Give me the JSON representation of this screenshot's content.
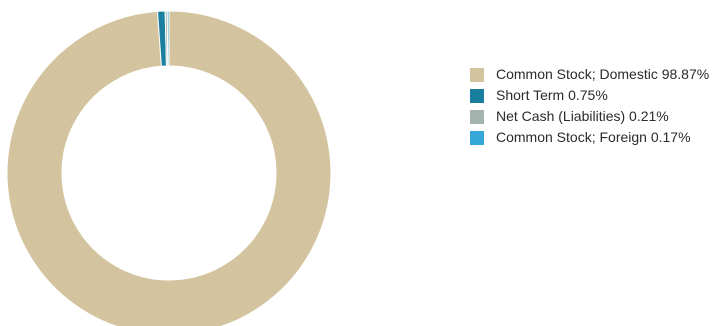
{
  "chart_data": {
    "type": "pie",
    "variant": "donut",
    "legend_position": "right",
    "series": [
      {
        "name": "Common Stock; Domestic",
        "label": "Common Stock; Domestic 98.87%",
        "value": 98.87,
        "color": "#d3c49f"
      },
      {
        "name": "Short Term",
        "label": "Short Term 0.75%",
        "value": 0.75,
        "color": "#1a7f9f"
      },
      {
        "name": "Net Cash (Liabilities)",
        "label": "Net Cash (Liabilities) 0.21%",
        "value": 0.21,
        "color": "#a4b3ad"
      },
      {
        "name": "Common Stock; Foreign",
        "label": "Common Stock; Foreign 0.17%",
        "value": 0.17,
        "color": "#35a7d9"
      }
    ]
  }
}
